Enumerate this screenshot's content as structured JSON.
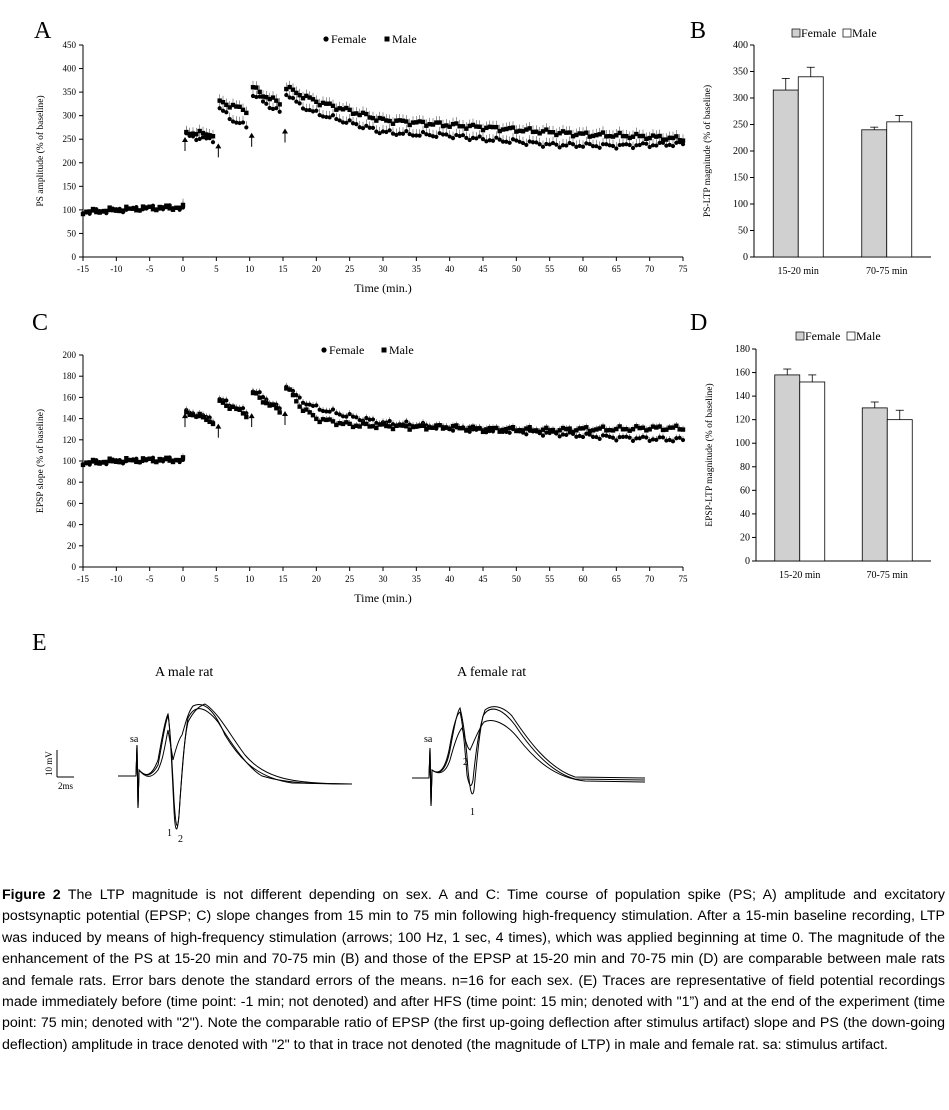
{
  "figure": {
    "panels": {
      "a": "A",
      "b": "B",
      "c": "C",
      "d": "D",
      "e": "E"
    },
    "legend_female": "Female",
    "legend_male": "Male"
  },
  "chart_data": [
    {
      "type": "scatter",
      "panel": "A",
      "xlabel": "Time (min.)",
      "ylabel": "PS amplitude (% of baseline)",
      "xlim": [
        -15,
        75
      ],
      "ylim": [
        0,
        450
      ],
      "xticks": [
        -15,
        -10,
        -5,
        0,
        5,
        10,
        15,
        20,
        25,
        30,
        35,
        40,
        45,
        50,
        55,
        60,
        65,
        70,
        75
      ],
      "yticks": [
        0,
        50,
        100,
        150,
        200,
        250,
        300,
        350,
        400,
        450
      ],
      "grid": false,
      "legend_position": "top-center",
      "hfs_arrows_at_min": [
        0,
        5,
        10,
        15
      ],
      "series": [
        {
          "name": "Female",
          "marker": "circle",
          "x": [
            -15,
            -10,
            -5,
            0,
            0.5,
            2.5,
            4.75,
            5.5,
            7.5,
            9.75,
            10.5,
            12.5,
            14.75,
            15.5,
            17.5,
            20,
            25,
            30,
            35,
            40,
            45,
            50,
            55,
            60,
            65,
            70,
            75
          ],
          "y": [
            95,
            100,
            104,
            105,
            258,
            252,
            248,
            315,
            290,
            275,
            345,
            325,
            305,
            348,
            322,
            305,
            285,
            265,
            260,
            258,
            250,
            245,
            238,
            237,
            236,
            238,
            240
          ]
        },
        {
          "name": "Male",
          "marker": "square",
          "x": [
            -15,
            -10,
            -5,
            0,
            0.5,
            2.5,
            4.75,
            5.5,
            7.5,
            9.75,
            10.5,
            12.5,
            14.75,
            15.5,
            17.5,
            20,
            25,
            30,
            35,
            40,
            45,
            50,
            55,
            60,
            65,
            70,
            75
          ],
          "y": [
            95,
            100,
            104,
            105,
            265,
            262,
            260,
            330,
            320,
            310,
            360,
            340,
            325,
            360,
            345,
            330,
            310,
            290,
            285,
            280,
            275,
            270,
            265,
            260,
            258,
            255,
            250
          ]
        }
      ]
    },
    {
      "type": "bar",
      "panel": "B",
      "ylabel": "PS-LTP magnitude (% of baseline)",
      "categories": [
        "15-20 min",
        "70-75 min"
      ],
      "ylim": [
        0,
        400
      ],
      "yticks": [
        0,
        50,
        100,
        150,
        200,
        250,
        300,
        350,
        400
      ],
      "legend_position": "top",
      "series": [
        {
          "name": "Female",
          "color": "#d0d0d0",
          "values": [
            315,
            240
          ],
          "errors": [
            22,
            5
          ]
        },
        {
          "name": "Male",
          "color": "#ffffff",
          "values": [
            340,
            255
          ],
          "errors": [
            18,
            12
          ]
        }
      ]
    },
    {
      "type": "scatter",
      "panel": "C",
      "xlabel": "Time (min.)",
      "ylabel": "EPSP slope (% of baseline)",
      "xlim": [
        -15,
        75
      ],
      "ylim": [
        0,
        200
      ],
      "xticks": [
        -15,
        -10,
        -5,
        0,
        5,
        10,
        15,
        20,
        25,
        30,
        35,
        40,
        45,
        50,
        55,
        60,
        65,
        70,
        75
      ],
      "yticks": [
        0,
        20,
        40,
        60,
        80,
        100,
        120,
        140,
        160,
        180,
        200
      ],
      "grid": false,
      "legend_position": "top-center",
      "hfs_arrows_at_min": [
        0,
        5,
        10,
        15
      ],
      "series": [
        {
          "name": "Female",
          "marker": "circle",
          "x": [
            -15,
            -10,
            -5,
            0,
            0.5,
            2.5,
            4.75,
            5.5,
            7.5,
            9.75,
            10.5,
            12.5,
            14.75,
            15.5,
            17.5,
            20,
            25,
            30,
            35,
            40,
            45,
            50,
            55,
            60,
            65,
            70,
            75
          ],
          "y": [
            98,
            100,
            101,
            101,
            146,
            143,
            138,
            158,
            152,
            145,
            167,
            158,
            148,
            172,
            158,
            150,
            142,
            136,
            134,
            131,
            129,
            128,
            126,
            124,
            122,
            121,
            120
          ]
        },
        {
          "name": "Male",
          "marker": "square",
          "x": [
            -15,
            -10,
            -5,
            0,
            0.5,
            2.5,
            4.75,
            5.5,
            7.5,
            9.75,
            10.5,
            12.5,
            14.75,
            15.5,
            17.5,
            20,
            25,
            30,
            35,
            40,
            45,
            50,
            55,
            60,
            65,
            70,
            75
          ],
          "y": [
            98,
            100,
            101,
            101,
            146,
            142,
            136,
            156,
            150,
            143,
            164,
            155,
            146,
            170,
            152,
            140,
            134,
            133,
            132,
            132,
            130,
            130,
            129,
            130,
            130,
            131,
            131
          ]
        }
      ]
    },
    {
      "type": "bar",
      "panel": "D",
      "ylabel": "EPSP-LTP magnitude (% of baseline)",
      "categories": [
        "15-20 min",
        "70-75 min"
      ],
      "ylim": [
        0,
        180
      ],
      "yticks": [
        0,
        20,
        40,
        60,
        80,
        100,
        120,
        140,
        160,
        180
      ],
      "legend_position": "top",
      "series": [
        {
          "name": "Female",
          "color": "#d0d0d0",
          "values": [
            158,
            130
          ],
          "errors": [
            5,
            5
          ]
        },
        {
          "name": "Male",
          "color": "#ffffff",
          "values": [
            152,
            120
          ],
          "errors": [
            6,
            8
          ]
        }
      ]
    }
  ],
  "traces": {
    "male_title": "A male rat",
    "female_title": "A female rat",
    "scale_voltage": "10 mV",
    "scale_time": "2ms",
    "sa_label": "sa",
    "label_1": "1",
    "label_2": "2"
  },
  "caption": {
    "label": "Figure 2",
    "text": " The LTP magnitude is not different depending on sex. A and C: Time course of population spike (PS; A) amplitude and excitatory postsynaptic potential (EPSP; C) slope changes from 15 min to 75 min following high-frequency stimulation. After a 15-min baseline recording, LTP was induced by means of high-frequency stimulation (arrows; 100 Hz, 1 sec, 4 times), which was applied beginning at time 0. The magnitude of the enhancement of the PS at 15-20 min and 70-75 min (B) and those of the EPSP at 15-20 min and 70-75 min (D) are comparable between male rats and female rats. Error bars denote the standard errors of the means. n=16 for each sex. (E) Traces are representative of field potential recordings made immediately before (time point: -1 min; not denoted) and after HFS (time point: 15 min; denoted with \"1”) and at the end of the experiment (time point: 75 min; denoted with \"2\"). Note the comparable ratio of EPSP (the first up-going deflection after stimulus artifact) slope and PS (the down-going deflection) amplitude in trace denoted with \"2\" to that in trace not denoted (the magnitude of LTP) in male and female rat. sa: stimulus artifact."
  }
}
